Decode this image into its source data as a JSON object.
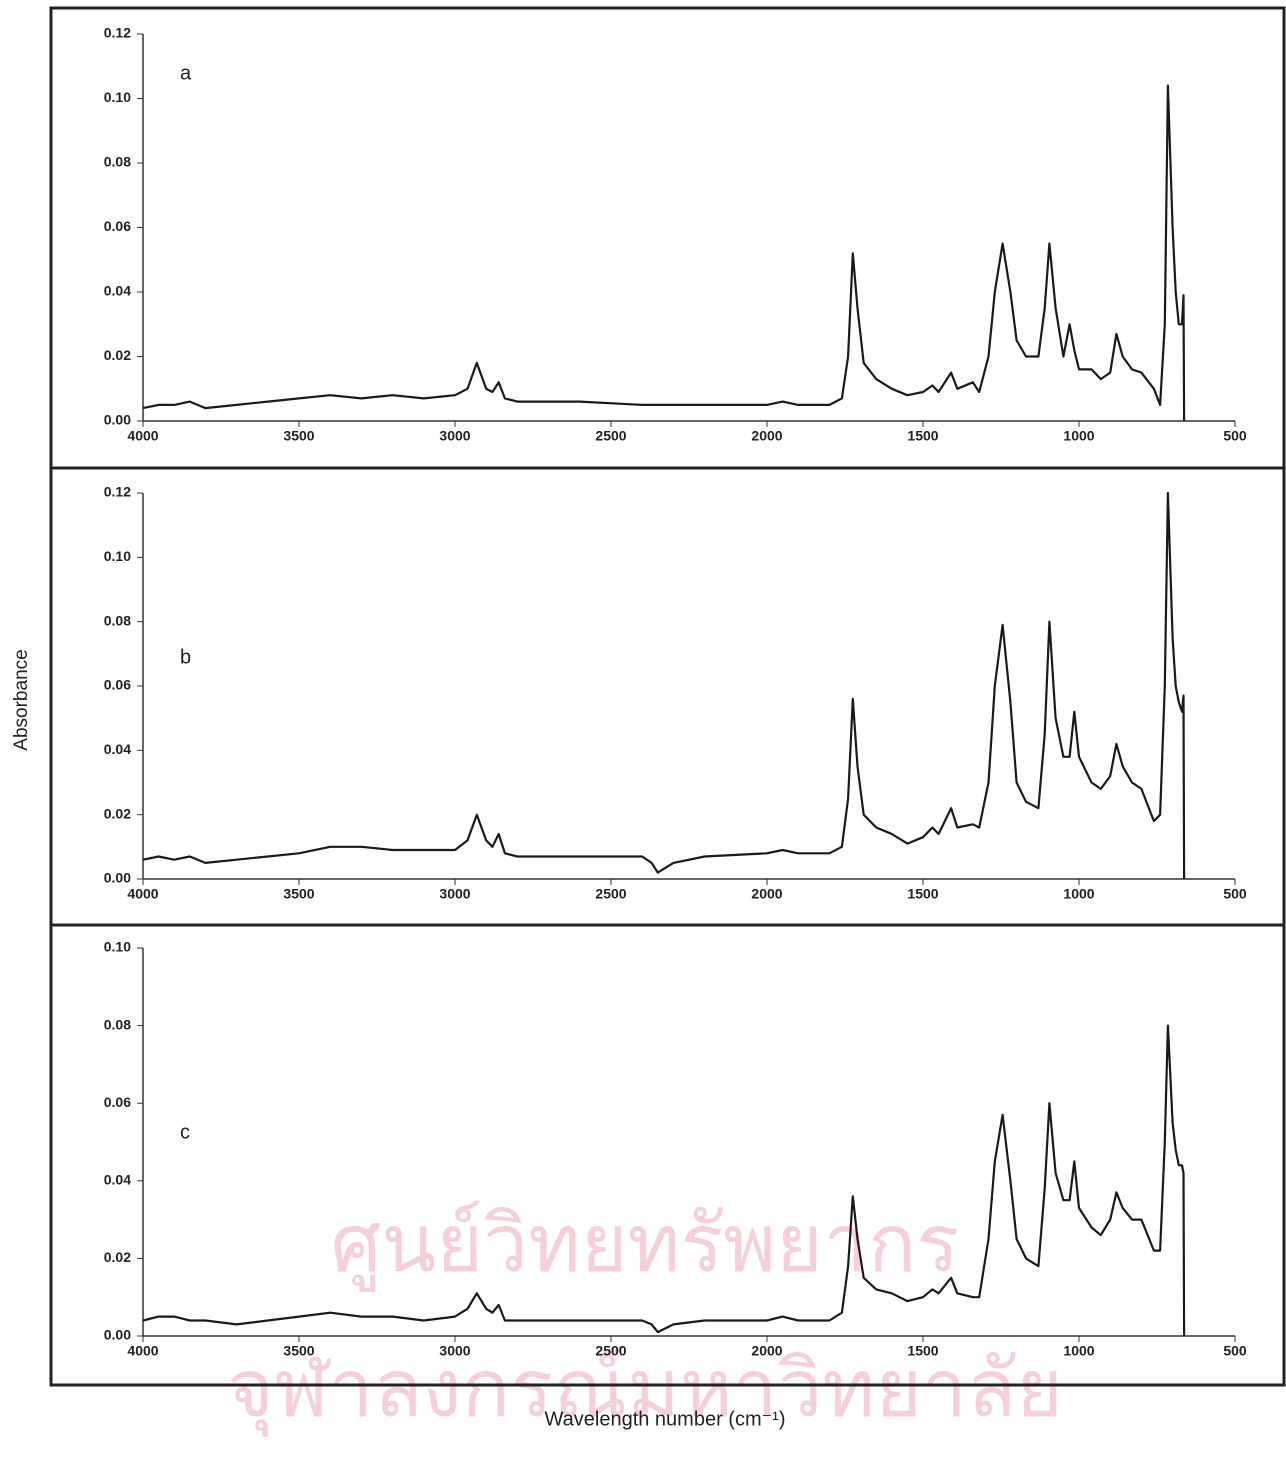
{
  "chart_data": [
    {
      "type": "line",
      "annotation": "a",
      "color": "#1a1a1a",
      "xlim": [
        4000,
        500
      ],
      "ylim": [
        0,
        0.12
      ],
      "xticks": [
        4000,
        3500,
        3000,
        2500,
        2000,
        1500,
        1000,
        500
      ],
      "yticks": [
        {
          "value": 0,
          "label": "0.00"
        },
        0.02,
        0.04,
        0.06,
        0.08,
        {
          "value": 0.1,
          "label": "0.10"
        },
        0.12
      ],
      "x": [
        4000,
        3950,
        3900,
        3850,
        3800,
        3700,
        3600,
        3500,
        3400,
        3300,
        3200,
        3100,
        3000,
        2960,
        2930,
        2900,
        2880,
        2860,
        2840,
        2800,
        2600,
        2400,
        2200,
        2000,
        1950,
        1900,
        1800,
        1760,
        1740,
        1725,
        1710,
        1690,
        1650,
        1600,
        1550,
        1500,
        1470,
        1450,
        1410,
        1390,
        1340,
        1320,
        1290,
        1270,
        1245,
        1220,
        1200,
        1170,
        1130,
        1110,
        1095,
        1075,
        1050,
        1030,
        1015,
        1000,
        960,
        930,
        900,
        880,
        860,
        830,
        800,
        760,
        740,
        725,
        715,
        700,
        690,
        680,
        670,
        665,
        663
      ],
      "values": [
        0.004,
        0.005,
        0.005,
        0.006,
        0.004,
        0.005,
        0.006,
        0.007,
        0.008,
        0.007,
        0.008,
        0.007,
        0.008,
        0.01,
        0.018,
        0.01,
        0.009,
        0.012,
        0.007,
        0.006,
        0.006,
        0.005,
        0.005,
        0.005,
        0.006,
        0.005,
        0.005,
        0.007,
        0.02,
        0.052,
        0.035,
        0.018,
        0.013,
        0.01,
        0.008,
        0.009,
        0.011,
        0.009,
        0.015,
        0.01,
        0.012,
        0.009,
        0.02,
        0.04,
        0.055,
        0.04,
        0.025,
        0.02,
        0.02,
        0.035,
        0.055,
        0.035,
        0.02,
        0.03,
        0.022,
        0.016,
        0.016,
        0.013,
        0.015,
        0.027,
        0.02,
        0.016,
        0.015,
        0.01,
        0.005,
        0.03,
        0.104,
        0.06,
        0.04,
        0.03,
        0.03,
        0.039,
        0
      ]
    },
    {
      "type": "line",
      "annotation": "b",
      "color": "#1a1a1a",
      "xlim": [
        4000,
        500
      ],
      "ylim": [
        0,
        0.12
      ],
      "xticks": [
        4000,
        3500,
        3000,
        2500,
        2000,
        1500,
        1000,
        500
      ],
      "yticks": [
        {
          "value": 0,
          "label": "0.00"
        },
        0.02,
        0.04,
        0.06,
        0.08,
        {
          "value": 0.1,
          "label": "0.10"
        },
        0.12
      ],
      "x": [
        4000,
        3950,
        3900,
        3850,
        3800,
        3700,
        3600,
        3500,
        3400,
        3300,
        3200,
        3100,
        3000,
        2960,
        2930,
        2900,
        2880,
        2860,
        2840,
        2800,
        2600,
        2400,
        2370,
        2350,
        2300,
        2200,
        2000,
        1950,
        1900,
        1800,
        1760,
        1740,
        1725,
        1710,
        1690,
        1650,
        1600,
        1550,
        1500,
        1470,
        1450,
        1410,
        1390,
        1340,
        1320,
        1290,
        1270,
        1245,
        1220,
        1200,
        1170,
        1130,
        1110,
        1095,
        1075,
        1050,
        1030,
        1015,
        1000,
        960,
        930,
        900,
        880,
        860,
        830,
        800,
        760,
        740,
        725,
        715,
        700,
        690,
        680,
        670,
        665,
        663
      ],
      "values": [
        0.006,
        0.007,
        0.006,
        0.007,
        0.005,
        0.006,
        0.007,
        0.008,
        0.01,
        0.01,
        0.009,
        0.009,
        0.009,
        0.012,
        0.02,
        0.012,
        0.01,
        0.014,
        0.008,
        0.007,
        0.007,
        0.007,
        0.005,
        0.002,
        0.005,
        0.007,
        0.008,
        0.009,
        0.008,
        0.008,
        0.01,
        0.025,
        0.056,
        0.035,
        0.02,
        0.016,
        0.014,
        0.011,
        0.013,
        0.016,
        0.014,
        0.022,
        0.016,
        0.017,
        0.016,
        0.03,
        0.06,
        0.079,
        0.055,
        0.03,
        0.024,
        0.022,
        0.045,
        0.08,
        0.05,
        0.038,
        0.038,
        0.052,
        0.038,
        0.03,
        0.028,
        0.032,
        0.042,
        0.035,
        0.03,
        0.028,
        0.018,
        0.02,
        0.06,
        0.12,
        0.075,
        0.06,
        0.055,
        0.052,
        0.057,
        0
      ]
    },
    {
      "type": "line",
      "annotation": "c",
      "color": "#1a1a1a",
      "xlim": [
        4000,
        500
      ],
      "ylim": [
        0,
        0.1
      ],
      "xticks": [
        4000,
        3500,
        3000,
        2500,
        2000,
        1500,
        1000,
        500
      ],
      "yticks": [
        {
          "value": 0,
          "label": "0.00"
        },
        0.02,
        0.04,
        0.06,
        0.08,
        {
          "value": 0.1,
          "label": "0.10"
        }
      ],
      "x": [
        4000,
        3950,
        3900,
        3850,
        3800,
        3700,
        3600,
        3500,
        3400,
        3300,
        3200,
        3100,
        3000,
        2960,
        2930,
        2900,
        2880,
        2860,
        2840,
        2800,
        2600,
        2400,
        2370,
        2350,
        2300,
        2200,
        2000,
        1950,
        1900,
        1800,
        1760,
        1740,
        1725,
        1710,
        1690,
        1650,
        1600,
        1550,
        1500,
        1470,
        1450,
        1410,
        1390,
        1340,
        1320,
        1290,
        1270,
        1245,
        1220,
        1200,
        1170,
        1130,
        1110,
        1095,
        1075,
        1050,
        1030,
        1015,
        1000,
        960,
        930,
        900,
        880,
        860,
        830,
        800,
        760,
        740,
        725,
        715,
        700,
        690,
        680,
        670,
        665,
        663
      ],
      "values": [
        0.004,
        0.005,
        0.005,
        0.004,
        0.004,
        0.003,
        0.004,
        0.005,
        0.006,
        0.005,
        0.005,
        0.004,
        0.005,
        0.007,
        0.011,
        0.007,
        0.006,
        0.008,
        0.004,
        0.004,
        0.004,
        0.004,
        0.003,
        0.001,
        0.003,
        0.004,
        0.004,
        0.005,
        0.004,
        0.004,
        0.006,
        0.018,
        0.036,
        0.025,
        0.015,
        0.012,
        0.011,
        0.009,
        0.01,
        0.012,
        0.011,
        0.015,
        0.011,
        0.01,
        0.01,
        0.025,
        0.045,
        0.057,
        0.04,
        0.025,
        0.02,
        0.018,
        0.038,
        0.06,
        0.042,
        0.035,
        0.035,
        0.045,
        0.033,
        0.028,
        0.026,
        0.03,
        0.037,
        0.033,
        0.03,
        0.03,
        0.022,
        0.022,
        0.05,
        0.08,
        0.055,
        0.048,
        0.044,
        0.044,
        0.042,
        0
      ]
    }
  ],
  "y_label": "Absorbance",
  "x_label": "Wavelength number (cm⁻¹)",
  "watermark": [
    "ศูนย์วิทยทรัพยากร",
    "จุฬาลงกรณ์มหาวิทยาลัย"
  ]
}
